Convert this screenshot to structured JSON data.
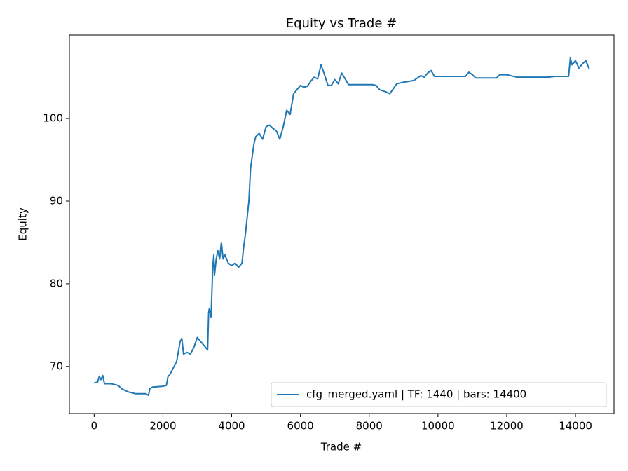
{
  "chart_data": {
    "type": "line",
    "title": "Equity vs Trade #",
    "x_label": "Trade #",
    "y_label": "Equity",
    "x": [
      0,
      100,
      150,
      200,
      250,
      300,
      500,
      700,
      800,
      1000,
      1200,
      1500,
      1580,
      1620,
      1700,
      2000,
      2100,
      2150,
      2200,
      2300,
      2400,
      2500,
      2550,
      2600,
      2700,
      2800,
      2900,
      3000,
      3100,
      3200,
      3300,
      3330,
      3350,
      3400,
      3450,
      3480,
      3500,
      3550,
      3600,
      3650,
      3700,
      3750,
      3800,
      3900,
      4000,
      4100,
      4200,
      4300,
      4350,
      4400,
      4500,
      4550,
      4600,
      4650,
      4700,
      4800,
      4900,
      5000,
      5100,
      5200,
      5300,
      5400,
      5500,
      5600,
      5700,
      5800,
      5900,
      6000,
      6100,
      6200,
      6300,
      6400,
      6500,
      6600,
      6700,
      6800,
      6900,
      7000,
      7100,
      7200,
      7300,
      7400,
      8000,
      8100,
      8200,
      8300,
      8500,
      8600,
      8700,
      8800,
      9000,
      9300,
      9500,
      9600,
      9700,
      9800,
      9900,
      10500,
      10800,
      10900,
      11000,
      11100,
      11500,
      11700,
      11800,
      12000,
      12200,
      12300,
      13200,
      13400,
      13800,
      13850,
      13900,
      14000,
      14100,
      14200,
      14300,
      14400
    ],
    "series": [
      {
        "name": "cfg_merged.yaml | TF: 1440 | bars: 14400",
        "color": "#1f77b4",
        "values": [
          68.0,
          68.1,
          68.8,
          68.4,
          68.9,
          67.9,
          67.9,
          67.7,
          67.3,
          66.9,
          66.7,
          66.7,
          66.5,
          67.3,
          67.5,
          67.6,
          67.7,
          68.8,
          69.0,
          69.8,
          70.6,
          73.0,
          73.4,
          71.5,
          71.7,
          71.5,
          72.3,
          73.5,
          73.0,
          72.5,
          72.0,
          76.5,
          77.0,
          76.0,
          82.0,
          83.5,
          81.0,
          83.0,
          84.0,
          83.0,
          85.0,
          83.0,
          83.5,
          82.5,
          82.2,
          82.5,
          82.0,
          82.5,
          84.5,
          86.0,
          90.0,
          94.0,
          95.5,
          97.0,
          97.8,
          98.2,
          97.5,
          99.0,
          99.2,
          98.8,
          98.5,
          97.5,
          99.0,
          101.0,
          100.5,
          103.0,
          103.5,
          104.0,
          103.8,
          103.9,
          104.5,
          105.0,
          104.8,
          106.5,
          105.3,
          104.0,
          104.0,
          104.7,
          104.2,
          105.5,
          104.8,
          104.1,
          104.1,
          104.1,
          104.0,
          103.5,
          103.2,
          103.0,
          103.6,
          104.2,
          104.4,
          104.6,
          105.2,
          105.0,
          105.5,
          105.8,
          105.1,
          105.1,
          105.1,
          105.6,
          105.3,
          104.9,
          104.9,
          104.9,
          105.3,
          105.3,
          105.1,
          105.0,
          105.0,
          105.1,
          105.1,
          107.3,
          106.5,
          107.0,
          106.1,
          106.6,
          107.0,
          106.0
        ]
      }
    ],
    "xlim": [
      -720,
      15120
    ],
    "xticks": [
      0,
      2000,
      4000,
      6000,
      8000,
      10000,
      12000,
      14000
    ],
    "ylim": [
      64.3,
      110.1
    ],
    "yticks": [
      70,
      80,
      90,
      100
    ],
    "legend": "lower right"
  }
}
